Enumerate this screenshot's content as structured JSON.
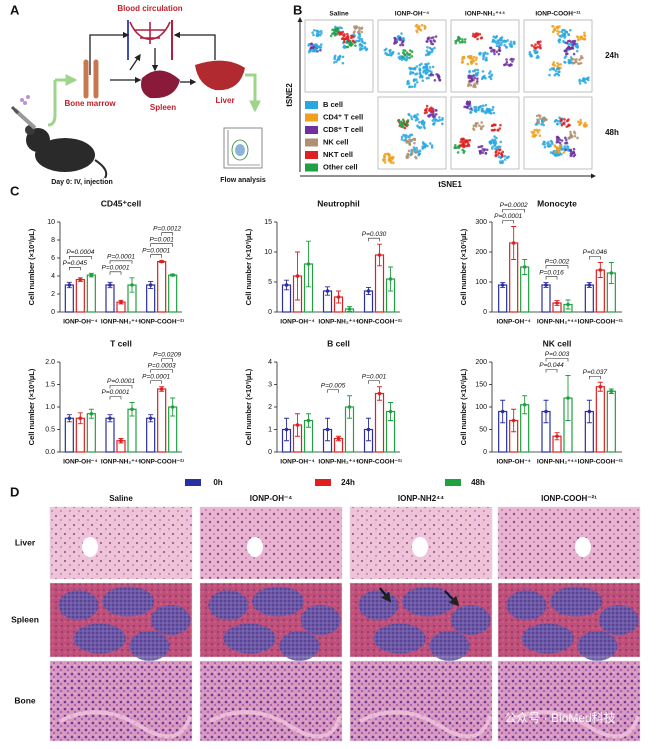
{
  "panels": {
    "A": {
      "label": "A",
      "blood": "Blood circulation",
      "bone": "Bone marrow",
      "spleen": "Spleen",
      "liver": "Liver",
      "injection": "Day 0: IV, injection",
      "flow": "Flow analysis"
    },
    "B": {
      "label": "B",
      "columns": [
        "Saline",
        "IONP-OH⁻⁴",
        "IONP-NH₂⁺⁴⁴",
        "IONP-COOH⁻²¹"
      ],
      "rows": [
        "24h",
        "48h"
      ],
      "x_axis": "tSNE1",
      "y_axis": "tSNE2",
      "legend": [
        {
          "name": "B cell",
          "color": "#29a8e0"
        },
        {
          "name": "CD4⁺ T cell",
          "color": "#f0a020"
        },
        {
          "name": "CD8⁺ T cell",
          "color": "#7030a0"
        },
        {
          "name": "NK cell",
          "color": "#b09070"
        },
        {
          "name": "NKT cell",
          "color": "#e02020"
        },
        {
          "name": "Other cell",
          "color": "#20a040"
        }
      ]
    },
    "C": {
      "label": "C",
      "legend": [
        {
          "name": "0h",
          "color": "#2b2fa0"
        },
        {
          "name": "24h",
          "color": "#e02020"
        },
        {
          "name": "48h",
          "color": "#20a040"
        }
      ]
    },
    "D": {
      "label": "D",
      "columns": [
        "Saline",
        "IONP-OH⁻⁴",
        "IONP-NH2⁴⁴",
        "IONP-COOH⁻²¹"
      ],
      "rows": [
        "Liver",
        "Spleen",
        "Bone"
      ]
    },
    "watermark": "公众号 · BioMed科技"
  },
  "chart_data": [
    {
      "type": "bar",
      "title": "CD45⁺cell",
      "ylabel": "Cell number (×10³/µL)",
      "categories": [
        "IONP-OH⁻⁴",
        "IONP-NH₂⁺⁴⁴",
        "IONP-COOH⁻²¹"
      ],
      "ylim": [
        0,
        10
      ],
      "yticks": [
        0,
        2,
        4,
        6,
        8,
        10
      ],
      "series": [
        {
          "values": [
            3,
            3,
            3
          ],
          "errors": [
            0.3,
            0.3,
            0.4
          ]
        },
        {
          "values": [
            3.6,
            1.1,
            5.6
          ],
          "errors": [
            0.2,
            0.2,
            0.1
          ]
        },
        {
          "values": [
            4.1,
            3,
            4.1
          ],
          "errors": [
            0.2,
            0.8,
            0.1
          ]
        }
      ],
      "annotations": [
        [
          "P=0.045",
          "P=0.0004"
        ],
        [
          "P=0.0001",
          "P=0.0001"
        ],
        [
          "P=0.0001",
          "P=0.001",
          "P=0.0012"
        ]
      ]
    },
    {
      "type": "bar",
      "title": "Neutrophil",
      "ylabel": "Cell number (×10³/µL)",
      "categories": [
        "IONP-OH⁻⁴",
        "IONP-NH₂⁺⁴⁴",
        "IONP-COOH⁻²¹"
      ],
      "ylim": [
        0,
        15
      ],
      "yticks": [
        0,
        5,
        10,
        15
      ],
      "series": [
        {
          "values": [
            4.5,
            3.5,
            3.5
          ],
          "errors": [
            0.8,
            0.7,
            0.6
          ]
        },
        {
          "values": [
            6,
            2.5,
            9.5
          ],
          "errors": [
            4,
            1,
            1.8
          ]
        },
        {
          "values": [
            8,
            0.5,
            5.5
          ],
          "errors": [
            3.8,
            0.4,
            2
          ]
        }
      ],
      "annotations": [
        [],
        [],
        [
          "P=0.030"
        ]
      ]
    },
    {
      "type": "bar",
      "title": "Monocyte",
      "ylabel": "Cell number (×10²/µL)",
      "categories": [
        "IONP-OH⁻⁴",
        "IONP-NH₂⁺⁴⁴",
        "IONP-COOH⁻²¹"
      ],
      "ylim": [
        0,
        300
      ],
      "yticks": [
        0,
        100,
        200,
        300
      ],
      "series": [
        {
          "values": [
            90,
            90,
            90
          ],
          "errors": [
            8,
            8,
            8
          ]
        },
        {
          "values": [
            230,
            30,
            140
          ],
          "errors": [
            55,
            8,
            25
          ]
        },
        {
          "values": [
            150,
            25,
            130
          ],
          "errors": [
            25,
            15,
            35
          ]
        }
      ],
      "annotations": [
        [
          "P=0.0001",
          "P=0.0002"
        ],
        [
          "P=0.016",
          "P=0.002"
        ],
        [
          "P=0.046"
        ]
      ]
    },
    {
      "type": "bar",
      "title": "T  cell",
      "ylabel": "Cell number (×10³/µL)",
      "categories": [
        "IONP-OH⁻⁴",
        "IONP-NH₂⁺⁴⁴",
        "IONP-COOH⁻²¹"
      ],
      "ylim": [
        0,
        2
      ],
      "yticks": [
        {
          "value": 0,
          "label": "0.0"
        },
        {
          "value": 0.5,
          "label": "0.5"
        },
        {
          "value": 1,
          "label": "1.0"
        },
        {
          "value": 1.5,
          "label": "1.5"
        },
        {
          "value": 2,
          "label": "2.0"
        }
      ],
      "series": [
        {
          "values": [
            0.75,
            0.75,
            0.75
          ],
          "errors": [
            0.08,
            0.08,
            0.08
          ]
        },
        {
          "values": [
            0.75,
            0.25,
            1.4
          ],
          "errors": [
            0.12,
            0.05,
            0.05
          ]
        },
        {
          "values": [
            0.85,
            0.95,
            1
          ],
          "errors": [
            0.1,
            0.15,
            0.2
          ]
        }
      ],
      "annotations": [
        [],
        [
          "P=0.0001",
          "P=0.0001"
        ],
        [
          "P=0.0001",
          "P=0.0003",
          "P=0.0209"
        ]
      ]
    },
    {
      "type": "bar",
      "title": "B  cell",
      "ylabel": "Cell number (×10³/µL)",
      "categories": [
        "IONP-OH⁻⁴",
        "IONP-NH₂⁺⁴⁴",
        "IONP-COOH⁻²¹"
      ],
      "ylim": [
        0,
        4
      ],
      "yticks": [
        0,
        1,
        2,
        3,
        4
      ],
      "series": [
        {
          "values": [
            1,
            1,
            1
          ],
          "errors": [
            0.5,
            0.5,
            0.5
          ]
        },
        {
          "values": [
            1.2,
            0.6,
            2.6
          ],
          "errors": [
            0.5,
            0.1,
            0.3
          ]
        },
        {
          "values": [
            1.4,
            2,
            1.8
          ],
          "errors": [
            0.3,
            0.5,
            0.4
          ]
        }
      ],
      "annotations": [
        [],
        [
          "P=0.005"
        ],
        [
          "P=0.001"
        ]
      ]
    },
    {
      "type": "bar",
      "title": "NK  cell",
      "ylabel": "Cell number (×10²/µL)",
      "categories": [
        "IONP-OH⁻⁴",
        "IONP-NH₂⁺⁴⁴",
        "IONP-COOH⁻²¹"
      ],
      "ylim": [
        0,
        200
      ],
      "yticks": [
        0,
        50,
        100,
        150,
        200
      ],
      "series": [
        {
          "values": [
            90,
            90,
            90
          ],
          "errors": [
            25,
            25,
            25
          ]
        },
        {
          "values": [
            70,
            35,
            145
          ],
          "errors": [
            25,
            8,
            10
          ]
        },
        {
          "values": [
            105,
            120,
            135
          ],
          "errors": [
            20,
            50,
            5
          ]
        }
      ],
      "annotations": [
        [],
        [
          "P=0.044",
          "P=0.003"
        ],
        [
          "P=0.037"
        ]
      ]
    }
  ]
}
